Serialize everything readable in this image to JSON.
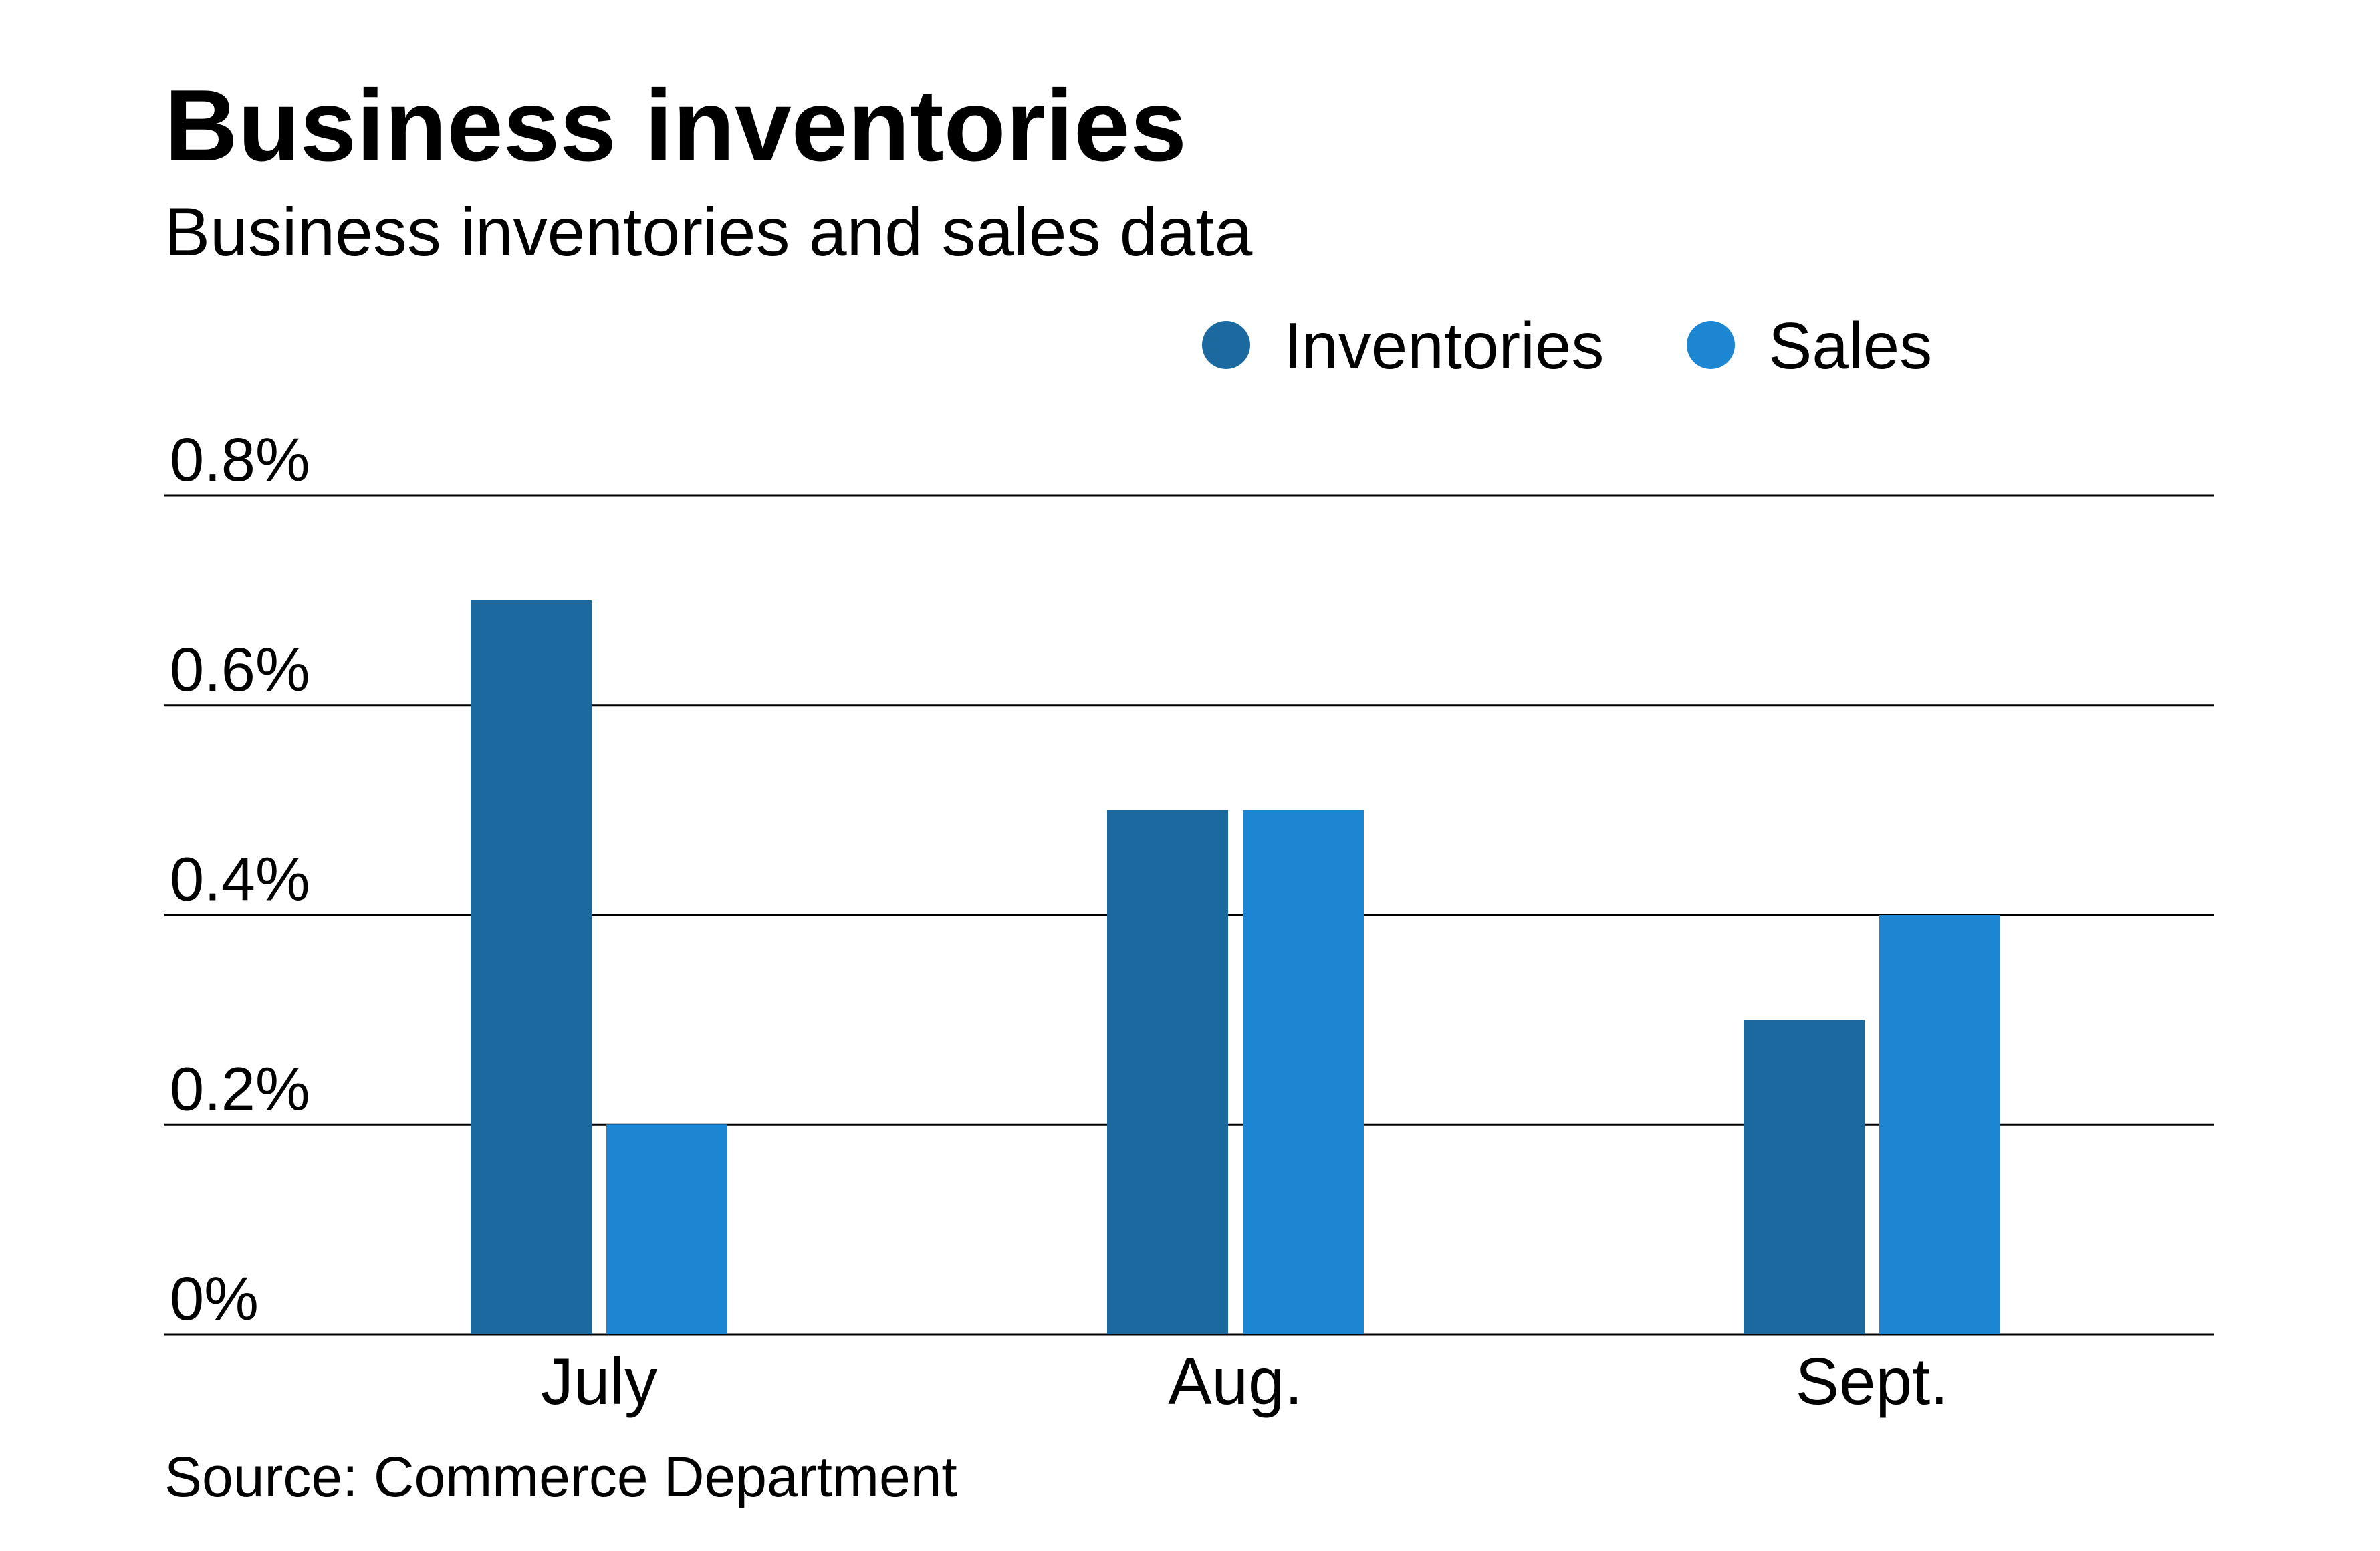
{
  "chart_data": {
    "type": "bar",
    "title": "Business inventories",
    "subtitle": "Business inventories and sales data",
    "categories": [
      "July",
      "Aug.",
      "Sept."
    ],
    "series": [
      {
        "name": "Inventories",
        "values": [
          0.7,
          0.5,
          0.3
        ],
        "color": "#1b699f"
      },
      {
        "name": "Sales",
        "values": [
          0.2,
          0.5,
          0.4
        ],
        "color": "#1c86d2"
      }
    ],
    "ylim": [
      0,
      0.8
    ],
    "yticks": [
      {
        "value": 0,
        "label": "0%"
      },
      {
        "value": 0.2,
        "label": "0.2%"
      },
      {
        "value": 0.4,
        "label": "0.4%"
      },
      {
        "value": 0.6,
        "label": "0.6%"
      },
      {
        "value": 0.8,
        "label": "0.8%"
      }
    ],
    "legend_position": "top-right",
    "grid": true,
    "source": "Source: Commerce Department"
  }
}
